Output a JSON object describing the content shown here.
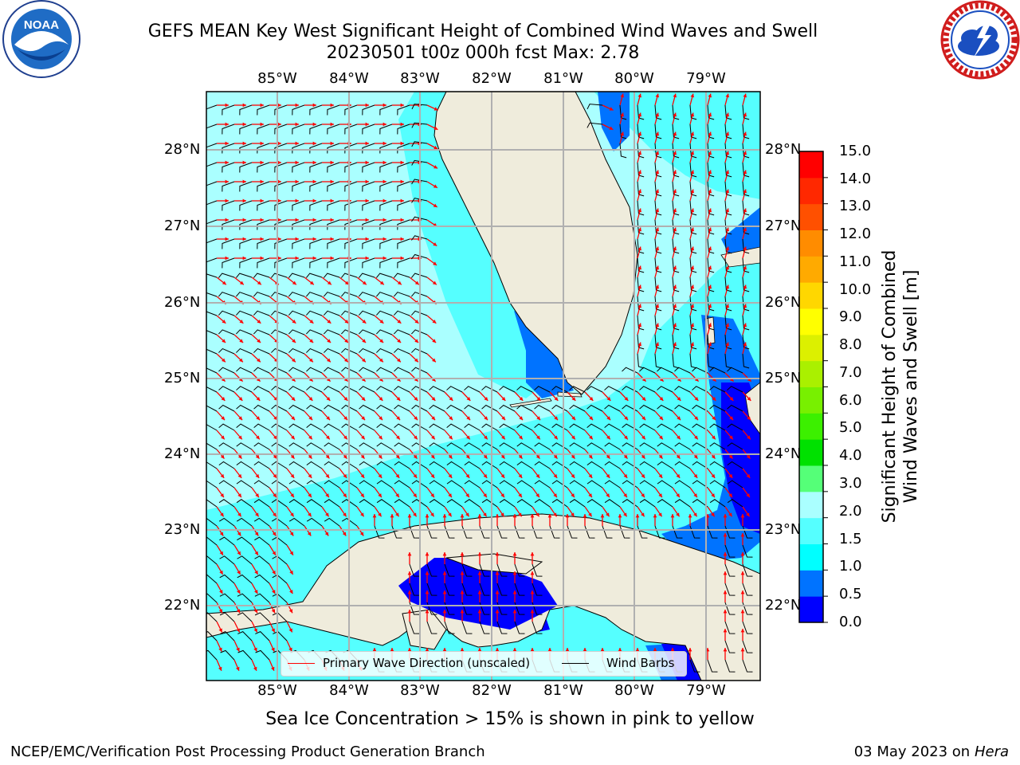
{
  "title": {
    "line1": "GEFS MEAN Key West Significant Height of Combined Wind Waves and Swell",
    "line2": "20230501 t00z 000h fcst   Max: 2.78"
  },
  "logos": {
    "left": {
      "icon": "noaa-logo",
      "text": "NOAA",
      "ring_text": "NATIONAL OCEANIC AND ATMOSPHERIC ADMINISTRATION · U.S. DEPARTMENT OF COMMERCE"
    },
    "right": {
      "icon": "national-weather-service-logo",
      "ring_text": "NATIONAL WEATHER SERVICE"
    }
  },
  "map": {
    "lon_labels_top": [
      "85°W",
      "84°W",
      "83°W",
      "82°W",
      "81°W",
      "80°W",
      "79°W"
    ],
    "lon_labels_bottom": [
      "85°W",
      "84°W",
      "83°W",
      "82°W",
      "81°W",
      "80°W",
      "79°W"
    ],
    "lat_labels_left": [
      "28°N",
      "27°N",
      "26°N",
      "25°N",
      "24°N",
      "23°N",
      "22°N"
    ],
    "lat_labels_right": [
      "28°N",
      "27°N",
      "26°N",
      "25°N",
      "24°N",
      "23°N",
      "22°N"
    ],
    "colors": {
      "land": "#efecdc",
      "grid": "#b0b0b0",
      "wave_arrow": "#ff0000",
      "wind_barb": "#000000"
    }
  },
  "colorbar": {
    "title_line1": "Significant Height of Combined",
    "title_line2": "Wind Waves and Swell [m]",
    "tick_labels": [
      "0.0",
      "0.5",
      "1.0",
      "1.5",
      "2.0",
      "3.0",
      "4.0",
      "5.0",
      "6.0",
      "7.0",
      "8.0",
      "9.0",
      "10.0",
      "11.0",
      "12.0",
      "13.0",
      "14.0",
      "15.0"
    ],
    "colors": [
      "#0000ff",
      "#0073ff",
      "#00ffff",
      "#55ffff",
      "#aaffff",
      "#55ff78",
      "#00e100",
      "#3cf000",
      "#78f000",
      "#aaf000",
      "#dcf000",
      "#ffff00",
      "#ffd700",
      "#ffaa00",
      "#ff8c00",
      "#ff5000",
      "#ff2800",
      "#ff0000"
    ]
  },
  "legend": {
    "wave_label": "Primary Wave Direction (unscaled)",
    "wind_label": "Wind Barbs"
  },
  "footer": {
    "sea_ice_note": "Sea Ice Concentration > 15% is shown in pink to yellow",
    "credit_left": "NCEP/EMC/Verification Post Processing Product Generation Branch",
    "date": "03 May 2023 on",
    "machine": "Hera"
  }
}
